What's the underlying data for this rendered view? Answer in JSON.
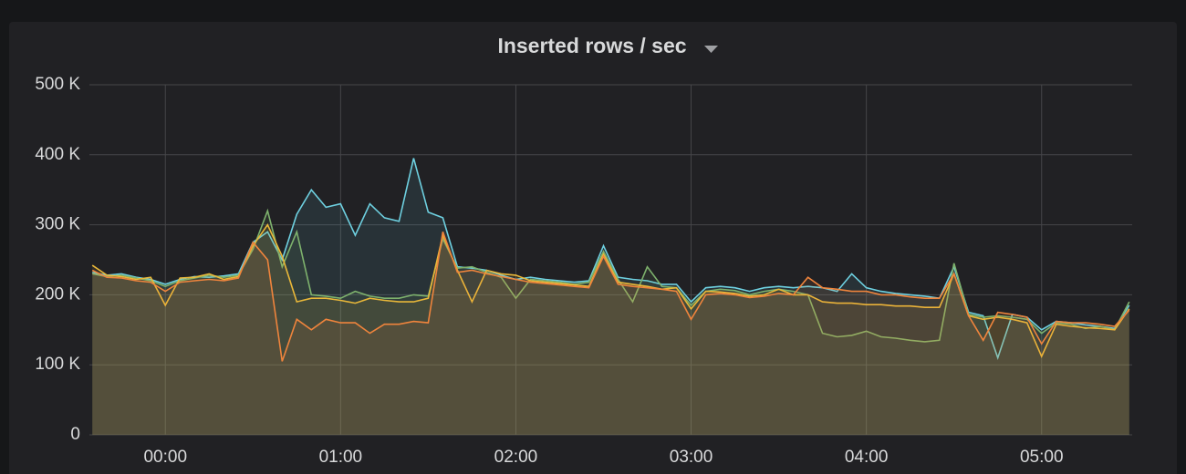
{
  "chart_data": {
    "type": "line",
    "title": "Inserted rows / sec",
    "x": [
      -25,
      -20,
      -15,
      -10,
      -5,
      0,
      5,
      10,
      15,
      20,
      25,
      30,
      35,
      40,
      45,
      50,
      55,
      60,
      65,
      70,
      75,
      80,
      85,
      90,
      95,
      100,
      105,
      110,
      115,
      120,
      125,
      130,
      135,
      140,
      145,
      150,
      155,
      160,
      165,
      170,
      175,
      180,
      185,
      190,
      195,
      200,
      205,
      210,
      215,
      220,
      225,
      230,
      235,
      240,
      245,
      250,
      255,
      260,
      265,
      270,
      275,
      280,
      285,
      290,
      295,
      300,
      305,
      310,
      315,
      320,
      325,
      330
    ],
    "series": [
      {
        "color": "#6ed0e0",
        "values": [
          232,
          228,
          230,
          225,
          222,
          215,
          222,
          226,
          225,
          227,
          230,
          275,
          290,
          250,
          315,
          350,
          325,
          330,
          285,
          330,
          310,
          305,
          395,
          318,
          310,
          240,
          238,
          235,
          228,
          222,
          225,
          222,
          220,
          218,
          220,
          270,
          225,
          222,
          220,
          215,
          215,
          190,
          210,
          212,
          210,
          205,
          210,
          212,
          210,
          212,
          210,
          205,
          230,
          210,
          205,
          202,
          200,
          198,
          195,
          240,
          175,
          170,
          110,
          172,
          168,
          150,
          162,
          160,
          157,
          155,
          152,
          185
        ]
      },
      {
        "color": "#7eb26d",
        "values": [
          230,
          226,
          228,
          224,
          220,
          212,
          220,
          224,
          228,
          225,
          228,
          265,
          320,
          240,
          290,
          200,
          198,
          195,
          205,
          198,
          195,
          195,
          200,
          198,
          280,
          238,
          240,
          232,
          225,
          195,
          222,
          220,
          218,
          215,
          218,
          262,
          222,
          190,
          240,
          212,
          210,
          185,
          205,
          208,
          206,
          200,
          205,
          208,
          205,
          200,
          145,
          140,
          142,
          148,
          140,
          138,
          135,
          133,
          135,
          245,
          172,
          168,
          170,
          168,
          165,
          145,
          160,
          158,
          152,
          155,
          150,
          190
        ]
      },
      {
        "color": "#eab839",
        "values": [
          242,
          228,
          226,
          222,
          225,
          185,
          224,
          225,
          230,
          222,
          226,
          270,
          300,
          255,
          190,
          195,
          195,
          192,
          188,
          195,
          192,
          190,
          190,
          195,
          285,
          235,
          190,
          235,
          230,
          228,
          220,
          218,
          216,
          214,
          212,
          258,
          218,
          215,
          212,
          208,
          210,
          180,
          205,
          204,
          202,
          198,
          200,
          208,
          200,
          200,
          190,
          188,
          188,
          186,
          186,
          184,
          184,
          182,
          182,
          230,
          170,
          165,
          168,
          165,
          160,
          112,
          158,
          155,
          153,
          152,
          150,
          180
        ]
      },
      {
        "color": "#ef843c",
        "values": [
          235,
          225,
          224,
          220,
          218,
          205,
          218,
          220,
          222,
          220,
          224,
          275,
          250,
          105,
          165,
          150,
          165,
          160,
          160,
          145,
          158,
          158,
          162,
          160,
          290,
          232,
          235,
          230,
          226,
          222,
          218,
          216,
          214,
          212,
          210,
          255,
          215,
          212,
          210,
          208,
          205,
          165,
          200,
          202,
          200,
          196,
          198,
          202,
          200,
          225,
          210,
          208,
          205,
          205,
          200,
          200,
          197,
          195,
          195,
          230,
          170,
          135,
          175,
          172,
          168,
          130,
          162,
          160,
          160,
          158,
          155,
          178
        ]
      }
    ],
    "xlim": [
      -26,
      331
    ],
    "xticks": [
      {
        "value": 0,
        "label": "00:00"
      },
      {
        "value": 60,
        "label": "01:00"
      },
      {
        "value": 120,
        "label": "02:00"
      },
      {
        "value": 180,
        "label": "03:00"
      },
      {
        "value": 240,
        "label": "04:00"
      },
      {
        "value": 300,
        "label": "05:00"
      }
    ],
    "ylim": [
      0,
      500
    ],
    "yticks": [
      0,
      {
        "value": 100,
        "label": "100 K"
      },
      {
        "value": 200,
        "label": "200 K"
      },
      {
        "value": 300,
        "label": "300 K"
      },
      {
        "value": 400,
        "label": "400 K"
      },
      {
        "value": 500,
        "label": "500 K"
      }
    ],
    "grid": true
  }
}
